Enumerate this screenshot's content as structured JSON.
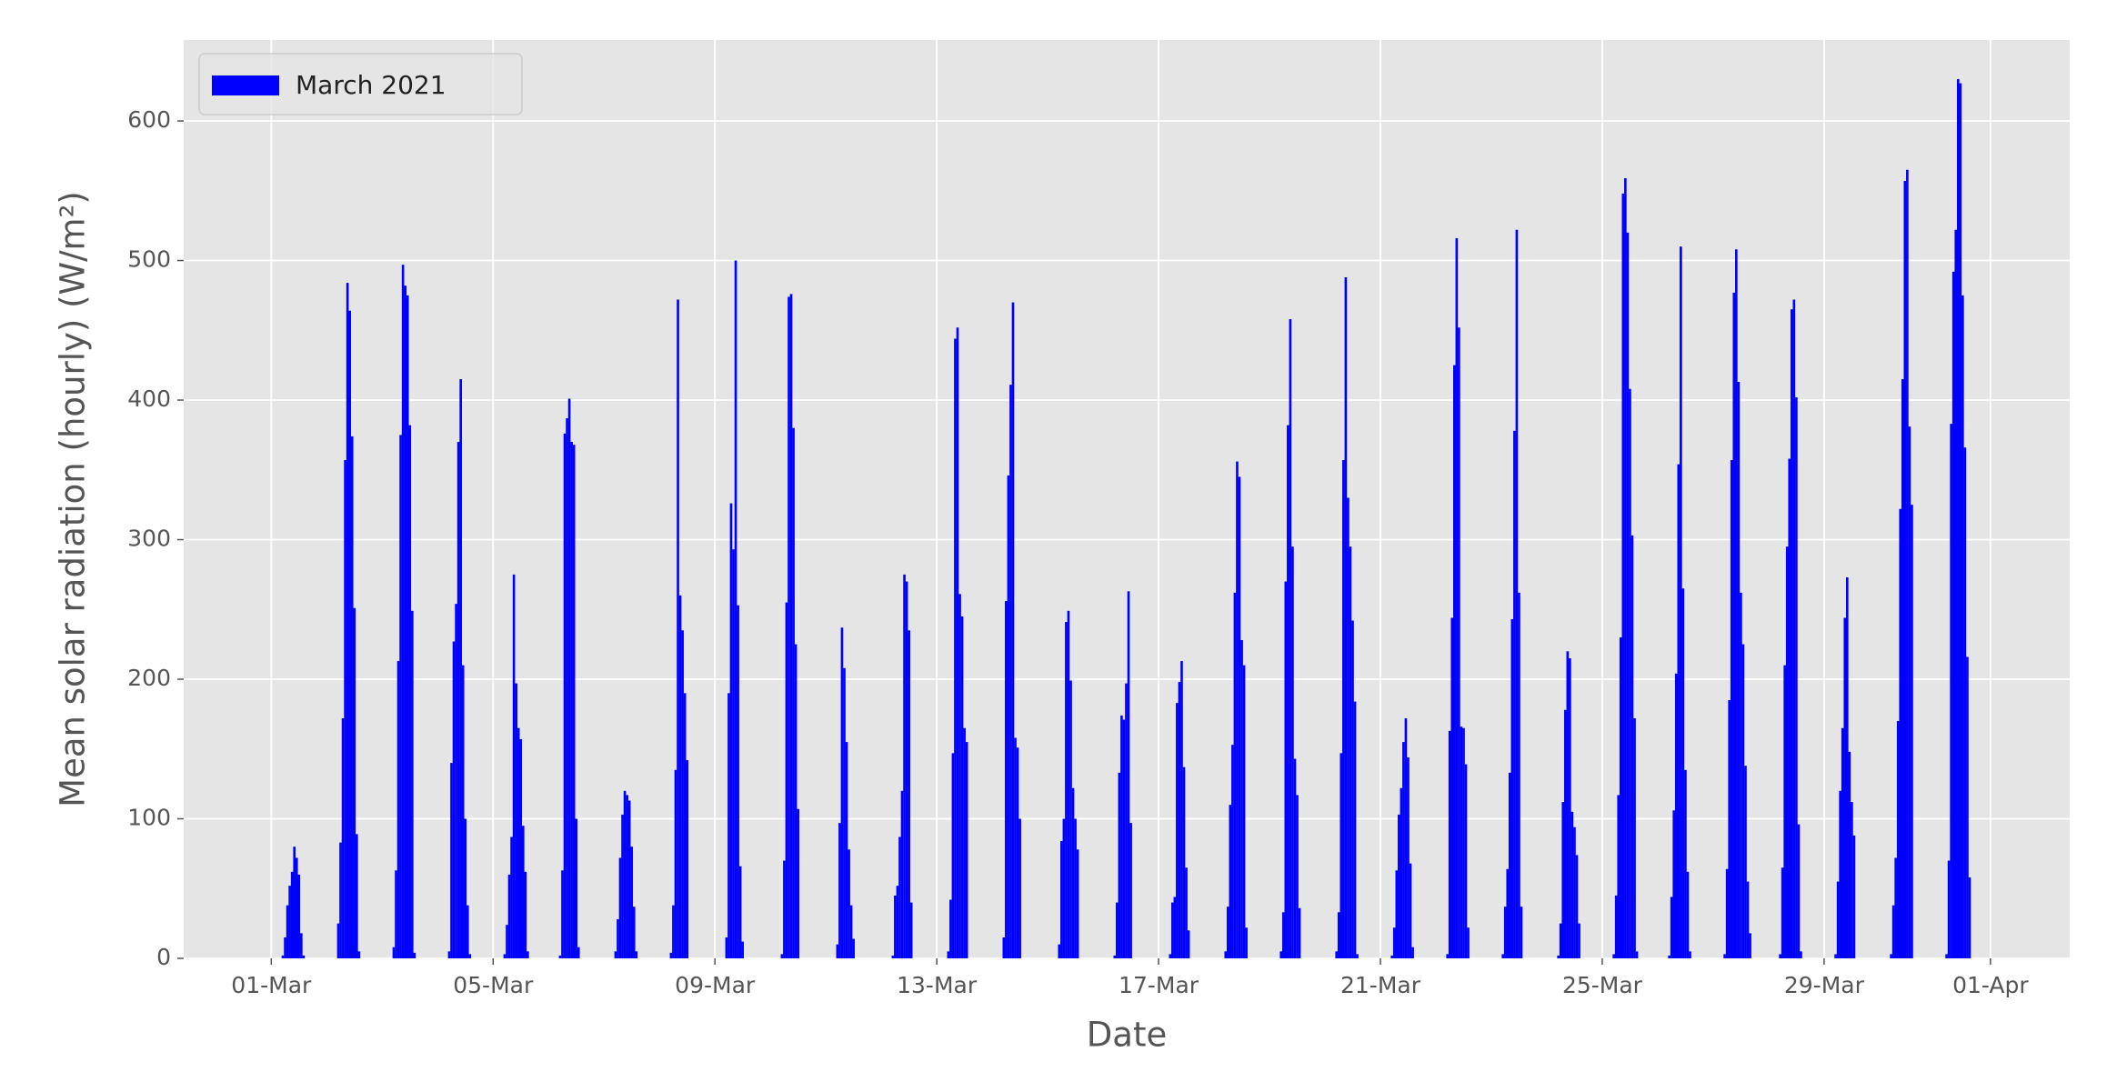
{
  "chart_data": {
    "type": "bar",
    "xlabel": "Date",
    "ylabel": "Mean solar radiation (hourly) (W/m²)",
    "x": [
      5,
      6,
      7,
      8,
      9,
      10,
      11,
      12,
      13,
      14,
      15,
      16,
      29,
      30,
      31,
      32,
      33,
      34,
      35,
      36,
      37,
      38,
      39,
      40,
      53,
      54,
      55,
      56,
      57,
      58,
      59,
      60,
      61,
      62,
      63,
      64,
      77,
      78,
      79,
      80,
      81,
      82,
      83,
      84,
      85,
      86,
      87,
      88,
      101,
      102,
      103,
      104,
      105,
      106,
      107,
      108,
      109,
      110,
      111,
      112,
      125,
      126,
      127,
      128,
      129,
      130,
      131,
      132,
      133,
      134,
      135,
      136,
      149,
      150,
      151,
      152,
      153,
      154,
      155,
      156,
      157,
      158,
      159,
      160,
      173,
      174,
      175,
      176,
      177,
      178,
      179,
      180,
      181,
      182,
      183,
      184,
      197,
      198,
      199,
      200,
      201,
      202,
      203,
      204,
      205,
      206,
      207,
      208,
      221,
      222,
      223,
      224,
      225,
      226,
      227,
      228,
      229,
      230,
      231,
      232,
      245,
      246,
      247,
      248,
      249,
      250,
      251,
      252,
      253,
      254,
      255,
      256,
      269,
      270,
      271,
      272,
      273,
      274,
      275,
      276,
      277,
      278,
      279,
      280,
      293,
      294,
      295,
      296,
      297,
      298,
      299,
      300,
      301,
      302,
      303,
      304,
      317,
      318,
      319,
      320,
      321,
      322,
      323,
      324,
      325,
      326,
      327,
      328,
      341,
      342,
      343,
      344,
      345,
      346,
      347,
      348,
      349,
      350,
      351,
      352,
      365,
      366,
      367,
      368,
      369,
      370,
      371,
      372,
      373,
      374,
      375,
      376,
      389,
      390,
      391,
      392,
      393,
      394,
      395,
      396,
      397,
      398,
      399,
      400,
      413,
      414,
      415,
      416,
      417,
      418,
      419,
      420,
      421,
      422,
      423,
      424,
      437,
      438,
      439,
      440,
      441,
      442,
      443,
      444,
      445,
      446,
      447,
      448,
      461,
      462,
      463,
      464,
      465,
      466,
      467,
      468,
      469,
      470,
      471,
      472,
      485,
      486,
      487,
      488,
      489,
      490,
      491,
      492,
      493,
      494,
      495,
      496,
      509,
      510,
      511,
      512,
      513,
      514,
      515,
      516,
      517,
      518,
      519,
      520,
      533,
      534,
      535,
      536,
      537,
      538,
      539,
      540,
      541,
      542,
      543,
      544,
      557,
      558,
      559,
      560,
      561,
      562,
      563,
      564,
      565,
      566,
      567,
      568,
      581,
      582,
      583,
      584,
      585,
      586,
      587,
      588,
      589,
      590,
      591,
      592,
      605,
      606,
      607,
      608,
      609,
      610,
      611,
      612,
      613,
      614,
      615,
      616,
      629,
      630,
      631,
      632,
      633,
      634,
      635,
      636,
      637,
      638,
      639,
      640,
      653,
      654,
      655,
      656,
      657,
      658,
      659,
      660,
      661,
      662,
      663,
      664,
      677,
      678,
      679,
      680,
      681,
      682,
      683,
      684,
      685,
      686,
      687,
      688,
      701,
      702,
      703,
      704,
      705,
      706,
      707,
      708,
      709,
      710,
      711,
      712,
      725,
      726,
      727,
      728,
      729,
      730,
      731,
      732,
      733,
      734,
      735,
      736
    ],
    "series": [
      {
        "name": "March 2021",
        "color": "#0000ff",
        "values": [
          2,
          15,
          38,
          52,
          62,
          80,
          72,
          60,
          18,
          2,
          0,
          0,
          25,
          83,
          172,
          357,
          484,
          464,
          374,
          251,
          89,
          5,
          0,
          0,
          8,
          63,
          213,
          375,
          497,
          482,
          475,
          382,
          249,
          4,
          0,
          0,
          5,
          140,
          227,
          254,
          370,
          415,
          210,
          100,
          38,
          3,
          0,
          0,
          3,
          24,
          60,
          87,
          275,
          197,
          165,
          157,
          95,
          62,
          5,
          0,
          2,
          63,
          376,
          387,
          401,
          370,
          368,
          100,
          8,
          0,
          0,
          0,
          5,
          28,
          72,
          103,
          120,
          117,
          113,
          80,
          37,
          5,
          0,
          0,
          4,
          38,
          135,
          472,
          260,
          235,
          190,
          142,
          0,
          0,
          0,
          0,
          15,
          190,
          326,
          293,
          500,
          253,
          66,
          12,
          0,
          0,
          0,
          0,
          3,
          70,
          255,
          474,
          476,
          380,
          225,
          107,
          0,
          0,
          0,
          0,
          10,
          97,
          237,
          208,
          155,
          78,
          38,
          14,
          0,
          0,
          0,
          0,
          2,
          45,
          52,
          87,
          120,
          275,
          270,
          235,
          40,
          0,
          0,
          0,
          5,
          42,
          147,
          444,
          452,
          261,
          245,
          165,
          155,
          0,
          0,
          0,
          15,
          256,
          346,
          411,
          470,
          158,
          151,
          100,
          0,
          0,
          0,
          0,
          10,
          84,
          100,
          241,
          249,
          199,
          122,
          100,
          78,
          0,
          0,
          0,
          2,
          40,
          133,
          174,
          171,
          197,
          263,
          97,
          0,
          0,
          0,
          0,
          3,
          40,
          44,
          183,
          198,
          213,
          137,
          65,
          20,
          0,
          0,
          0,
          5,
          37,
          110,
          153,
          262,
          356,
          345,
          228,
          210,
          22,
          0,
          0,
          5,
          33,
          270,
          382,
          458,
          295,
          143,
          117,
          36,
          0,
          0,
          0,
          5,
          33,
          147,
          357,
          488,
          330,
          295,
          242,
          184,
          3,
          0,
          0,
          2,
          22,
          63,
          103,
          122,
          155,
          172,
          144,
          68,
          8,
          0,
          0,
          3,
          163,
          244,
          425,
          516,
          452,
          166,
          165,
          139,
          22,
          0,
          0,
          3,
          37,
          64,
          133,
          243,
          378,
          522,
          262,
          37,
          0,
          0,
          0,
          2,
          25,
          112,
          178,
          220,
          215,
          105,
          94,
          74,
          25,
          0,
          0,
          3,
          45,
          117,
          230,
          548,
          559,
          520,
          408,
          303,
          172,
          5,
          0,
          2,
          44,
          106,
          204,
          354,
          510,
          265,
          135,
          62,
          5,
          0,
          0,
          3,
          64,
          185,
          357,
          477,
          508,
          413,
          262,
          225,
          138,
          55,
          18,
          3,
          65,
          210,
          295,
          358,
          465,
          472,
          402,
          96,
          5,
          0,
          0,
          3,
          55,
          120,
          165,
          244,
          273,
          148,
          112,
          88,
          0,
          0,
          0,
          3,
          38,
          72,
          170,
          322,
          415,
          557,
          565,
          381,
          325,
          0,
          0,
          3,
          70,
          383,
          492,
          522,
          630,
          627,
          475,
          366,
          216,
          58,
          0
        ]
      }
    ],
    "xlim": [
      -37.9,
      778.3
    ],
    "xticks": [
      {
        "value": 0,
        "label": "01-Mar"
      },
      {
        "value": 96,
        "label": "05-Mar"
      },
      {
        "value": 192,
        "label": "09-Mar"
      },
      {
        "value": 288,
        "label": "13-Mar"
      },
      {
        "value": 384,
        "label": "17-Mar"
      },
      {
        "value": 480,
        "label": "21-Mar"
      },
      {
        "value": 576,
        "label": "25-Mar"
      },
      {
        "value": 672,
        "label": "29-Mar"
      },
      {
        "value": 744,
        "label": "01-Apr"
      }
    ],
    "ylim": [
      0,
      658
    ],
    "yticks": [
      0,
      100,
      200,
      300,
      400,
      500,
      600
    ],
    "grid": true,
    "legend": "upper left"
  }
}
